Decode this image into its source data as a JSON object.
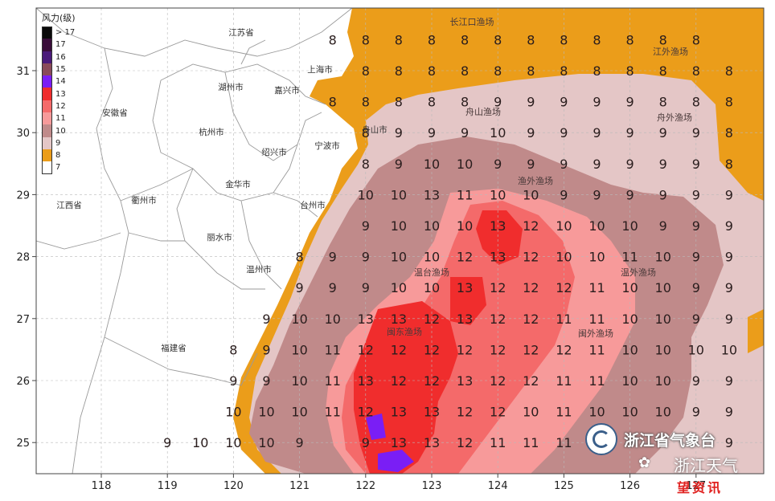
{
  "legend": {
    "title": "风力(级)",
    "items": [
      {
        "label": "> 17",
        "color": "#0a0a0a"
      },
      {
        "label": "17",
        "color": "#3a0d3a"
      },
      {
        "label": "16",
        "color": "#4b1a7a"
      },
      {
        "label": "15",
        "color": "#8a4a5a"
      },
      {
        "label": "14",
        "color": "#7a1ef5"
      },
      {
        "label": "13",
        "color": "#f02d2d"
      },
      {
        "label": "12",
        "color": "#f46a6a"
      },
      {
        "label": "11",
        "color": "#f79a9a"
      },
      {
        "label": "10",
        "color": "#c08a8a"
      },
      {
        "label": "9",
        "color": "#e4c6c6"
      },
      {
        "label": "8",
        "color": "#eb9d1a"
      },
      {
        "label": "7",
        "color": "#ffffff"
      }
    ]
  },
  "axes": {
    "lon_ticks": [
      "118",
      "119",
      "120",
      "121",
      "122",
      "123",
      "124",
      "125",
      "126",
      "127"
    ],
    "lat_ticks": [
      "31",
      "30",
      "29",
      "28",
      "27",
      "26",
      "25"
    ]
  },
  "colors": {
    "land": "#ffffff",
    "border": "#9a9a9a",
    "grid": "#b9b9b9",
    "level8": "#eb9d1a",
    "level9": "#e4c6c6",
    "level10": "#c08a8a",
    "level11": "#f79a9a",
    "level12": "#f46a6a",
    "level13": "#f02d2d",
    "level14": "#7a1ef5"
  },
  "regions": [
    {
      "name": "江苏省"
    },
    {
      "name": "上海市"
    },
    {
      "name": "湖州市"
    },
    {
      "name": "嘉兴市"
    },
    {
      "name": "安徽省"
    },
    {
      "name": "杭州市"
    },
    {
      "name": "舟山市"
    },
    {
      "name": "绍兴市"
    },
    {
      "name": "宁波市"
    },
    {
      "name": "金华市"
    },
    {
      "name": "衢州市"
    },
    {
      "name": "台州市"
    },
    {
      "name": "江西省"
    },
    {
      "name": "丽水市"
    },
    {
      "name": "温州市"
    },
    {
      "name": "福建省"
    }
  ],
  "fisheries": [
    {
      "name": "长江口渔场"
    },
    {
      "name": "江外渔场"
    },
    {
      "name": "舟山渔场"
    },
    {
      "name": "舟外渔场"
    },
    {
      "name": "渔外渔场"
    },
    {
      "name": "温台渔场"
    },
    {
      "name": "温外渔场"
    },
    {
      "name": "闽东渔场"
    },
    {
      "name": "闽外渔场"
    }
  ],
  "wind_grid": [
    {
      "lat": 31.5,
      "cells": [
        [
          121.5,
          "8"
        ],
        [
          122.0,
          "8"
        ],
        [
          122.5,
          "8"
        ],
        [
          123.0,
          "8"
        ],
        [
          123.5,
          "8"
        ],
        [
          124.0,
          "8"
        ],
        [
          124.5,
          "8"
        ],
        [
          125.0,
          "8"
        ],
        [
          125.5,
          "8"
        ],
        [
          126.0,
          "8"
        ],
        [
          126.5,
          "8"
        ],
        [
          127.0,
          "8"
        ]
      ]
    },
    {
      "lat": 31.0,
      "cells": [
        [
          122.0,
          "8"
        ],
        [
          122.5,
          "8"
        ],
        [
          123.0,
          "8"
        ],
        [
          123.5,
          "8"
        ],
        [
          124.0,
          "8"
        ],
        [
          124.5,
          "8"
        ],
        [
          125.0,
          "8"
        ],
        [
          125.5,
          "8"
        ],
        [
          126.0,
          "8"
        ],
        [
          126.5,
          "8"
        ],
        [
          127.0,
          "8"
        ],
        [
          127.5,
          "8"
        ]
      ]
    },
    {
      "lat": 30.5,
      "cells": [
        [
          121.5,
          "8"
        ],
        [
          122.0,
          "8"
        ],
        [
          122.5,
          "8"
        ],
        [
          123.0,
          "8"
        ],
        [
          123.5,
          "8"
        ],
        [
          124.0,
          "9"
        ],
        [
          124.5,
          "9"
        ],
        [
          125.0,
          "9"
        ],
        [
          125.5,
          "9"
        ],
        [
          126.0,
          "9"
        ],
        [
          126.5,
          "8"
        ],
        [
          127.0,
          "8"
        ],
        [
          127.5,
          "8"
        ]
      ]
    },
    {
      "lat": 30.0,
      "cells": [
        [
          122.0,
          "8"
        ],
        [
          122.5,
          "9"
        ],
        [
          123.0,
          "9"
        ],
        [
          123.5,
          "9"
        ],
        [
          124.0,
          "10"
        ],
        [
          124.5,
          "9"
        ],
        [
          125.0,
          "9"
        ],
        [
          125.5,
          "9"
        ],
        [
          126.0,
          "9"
        ],
        [
          126.5,
          "9"
        ],
        [
          127.0,
          "9"
        ],
        [
          127.5,
          "8"
        ]
      ]
    },
    {
      "lat": 29.5,
      "cells": [
        [
          122.0,
          "8"
        ],
        [
          122.5,
          "9"
        ],
        [
          123.0,
          "10"
        ],
        [
          123.5,
          "10"
        ],
        [
          124.0,
          "9"
        ],
        [
          124.5,
          "9"
        ],
        [
          125.0,
          "9"
        ],
        [
          125.5,
          "9"
        ],
        [
          126.0,
          "9"
        ],
        [
          126.5,
          "9"
        ],
        [
          127.0,
          "9"
        ],
        [
          127.5,
          "8"
        ]
      ]
    },
    {
      "lat": 29.0,
      "cells": [
        [
          122.0,
          "10"
        ],
        [
          122.5,
          "10"
        ],
        [
          123.0,
          "13"
        ],
        [
          123.5,
          "11"
        ],
        [
          124.0,
          "10"
        ],
        [
          124.5,
          "10"
        ],
        [
          125.0,
          "9"
        ],
        [
          125.5,
          "9"
        ],
        [
          126.0,
          "9"
        ],
        [
          126.5,
          "9"
        ],
        [
          127.0,
          "9"
        ],
        [
          127.5,
          "9"
        ]
      ]
    },
    {
      "lat": 28.5,
      "cells": [
        [
          122.0,
          "9"
        ],
        [
          122.5,
          "10"
        ],
        [
          123.0,
          "10"
        ],
        [
          123.5,
          "10"
        ],
        [
          124.0,
          "13"
        ],
        [
          124.5,
          "12"
        ],
        [
          125.0,
          "10"
        ],
        [
          125.5,
          "10"
        ],
        [
          126.0,
          "10"
        ],
        [
          126.5,
          "9"
        ],
        [
          127.0,
          "9"
        ],
        [
          127.5,
          "9"
        ]
      ]
    },
    {
      "lat": 28.0,
      "cells": [
        [
          121.0,
          "8"
        ],
        [
          121.5,
          "9"
        ],
        [
          122.0,
          "9"
        ],
        [
          122.5,
          "10"
        ],
        [
          123.0,
          "10"
        ],
        [
          123.5,
          "12"
        ],
        [
          124.0,
          "13"
        ],
        [
          124.5,
          "12"
        ],
        [
          125.0,
          "10"
        ],
        [
          125.5,
          "10"
        ],
        [
          126.0,
          "11"
        ],
        [
          126.5,
          "10"
        ],
        [
          127.0,
          "9"
        ],
        [
          127.5,
          "9"
        ]
      ]
    },
    {
      "lat": 27.5,
      "cells": [
        [
          121.0,
          "9"
        ],
        [
          121.5,
          "9"
        ],
        [
          122.0,
          "9"
        ],
        [
          122.5,
          "10"
        ],
        [
          123.0,
          "10"
        ],
        [
          123.5,
          "13"
        ],
        [
          124.0,
          "12"
        ],
        [
          124.5,
          "12"
        ],
        [
          125.0,
          "12"
        ],
        [
          125.5,
          "11"
        ],
        [
          126.0,
          "10"
        ],
        [
          126.5,
          "10"
        ],
        [
          127.0,
          "9"
        ],
        [
          127.5,
          "9"
        ]
      ]
    },
    {
      "lat": 27.0,
      "cells": [
        [
          120.5,
          "9"
        ],
        [
          121.0,
          "10"
        ],
        [
          121.5,
          "10"
        ],
        [
          122.0,
          "13"
        ],
        [
          122.5,
          "13"
        ],
        [
          123.0,
          "12"
        ],
        [
          123.5,
          "13"
        ],
        [
          124.0,
          "12"
        ],
        [
          124.5,
          "12"
        ],
        [
          125.0,
          "11"
        ],
        [
          125.5,
          "11"
        ],
        [
          126.0,
          "10"
        ],
        [
          126.5,
          "10"
        ],
        [
          127.0,
          "9"
        ],
        [
          127.5,
          "9"
        ]
      ]
    },
    {
      "lat": 26.5,
      "cells": [
        [
          120.0,
          "8"
        ],
        [
          120.5,
          "9"
        ],
        [
          121.0,
          "10"
        ],
        [
          121.5,
          "11"
        ],
        [
          122.0,
          "12"
        ],
        [
          122.5,
          "12"
        ],
        [
          123.0,
          "12"
        ],
        [
          123.5,
          "12"
        ],
        [
          124.0,
          "12"
        ],
        [
          124.5,
          "12"
        ],
        [
          125.0,
          "12"
        ],
        [
          125.5,
          "11"
        ],
        [
          126.0,
          "10"
        ],
        [
          126.5,
          "10"
        ],
        [
          127.0,
          "10"
        ],
        [
          127.5,
          "10"
        ]
      ]
    },
    {
      "lat": 26.0,
      "cells": [
        [
          120.0,
          "9"
        ],
        [
          120.5,
          "9"
        ],
        [
          121.0,
          "10"
        ],
        [
          121.5,
          "11"
        ],
        [
          122.0,
          "13"
        ],
        [
          122.5,
          "12"
        ],
        [
          123.0,
          "12"
        ],
        [
          123.5,
          "13"
        ],
        [
          124.0,
          "12"
        ],
        [
          124.5,
          "12"
        ],
        [
          125.0,
          "11"
        ],
        [
          125.5,
          "11"
        ],
        [
          126.0,
          "10"
        ],
        [
          126.5,
          "10"
        ],
        [
          127.0,
          "9"
        ],
        [
          127.5,
          "9"
        ]
      ]
    },
    {
      "lat": 25.5,
      "cells": [
        [
          120.0,
          "10"
        ],
        [
          120.5,
          "10"
        ],
        [
          121.0,
          "10"
        ],
        [
          121.5,
          "11"
        ],
        [
          122.0,
          "12"
        ],
        [
          122.5,
          "13"
        ],
        [
          123.0,
          "13"
        ],
        [
          123.5,
          "12"
        ],
        [
          124.0,
          "12"
        ],
        [
          124.5,
          "10"
        ],
        [
          125.0,
          "11"
        ],
        [
          125.5,
          "10"
        ],
        [
          126.0,
          "10"
        ],
        [
          126.5,
          "10"
        ],
        [
          127.0,
          "9"
        ],
        [
          127.5,
          "9"
        ]
      ]
    },
    {
      "lat": 25.0,
      "cells": [
        [
          119.0,
          "9"
        ],
        [
          119.5,
          "10"
        ],
        [
          120.0,
          "10"
        ],
        [
          120.5,
          "10"
        ],
        [
          121.0,
          "9"
        ],
        [
          122.0,
          "9"
        ],
        [
          122.5,
          "13"
        ],
        [
          123.0,
          "13"
        ],
        [
          123.5,
          "12"
        ],
        [
          124.0,
          "11"
        ],
        [
          124.5,
          "11"
        ],
        [
          125.0,
          "11"
        ],
        [
          127.5,
          "9"
        ]
      ]
    }
  ],
  "logo": {
    "org": "浙江省气象台"
  },
  "watermark": {
    "name": "浙江天气",
    "sub": "望资讯"
  }
}
